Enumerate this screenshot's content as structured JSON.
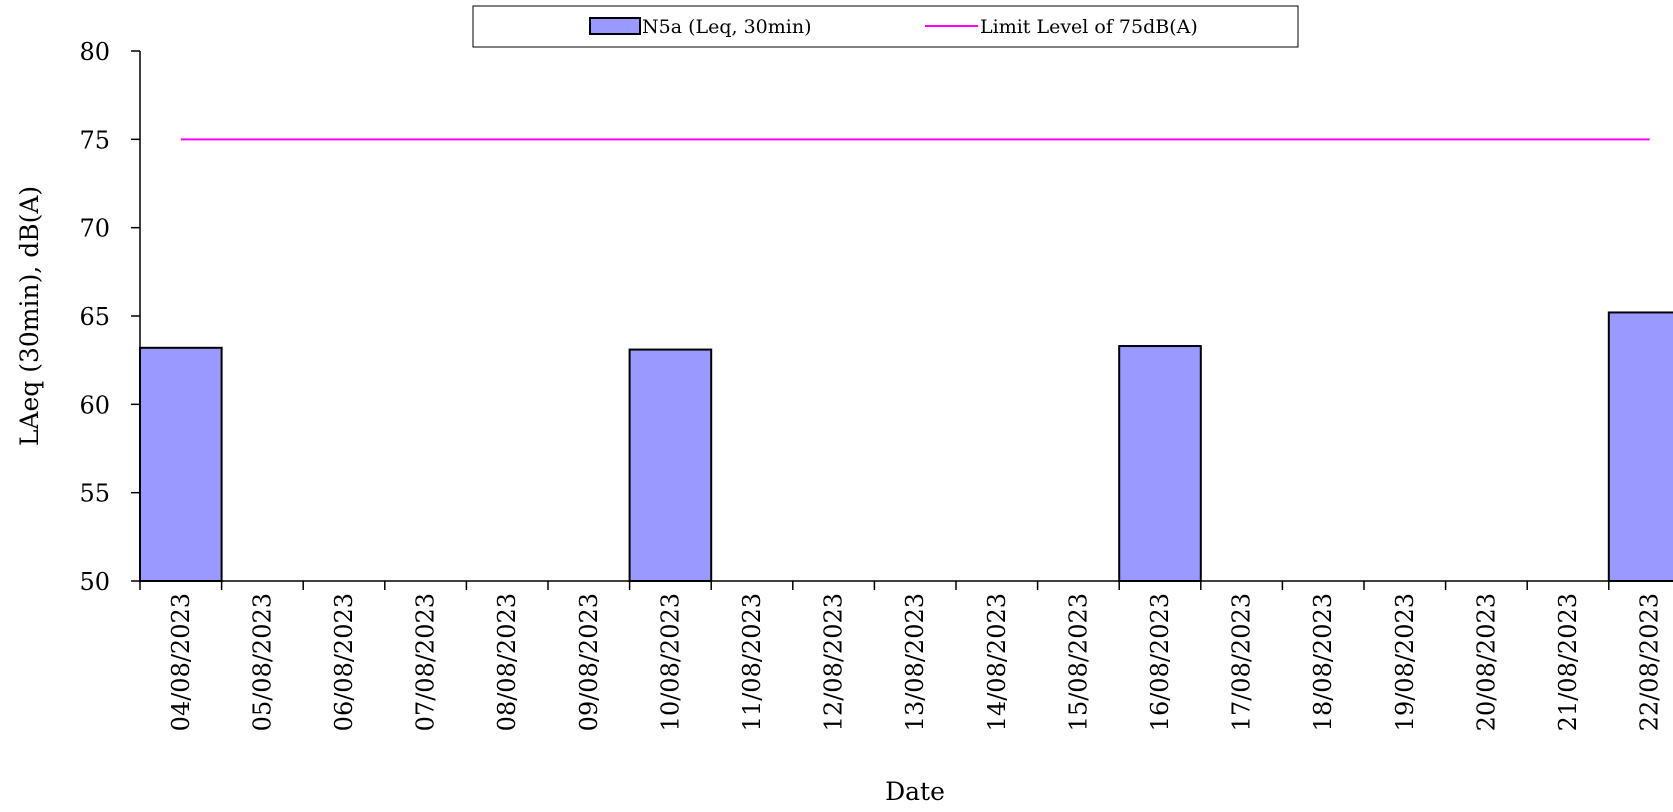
{
  "chart_data": {
    "type": "bar",
    "title": "",
    "xlabel": "Date",
    "ylabel": "LAeq (30min), dB(A)",
    "ylim": [
      50,
      80
    ],
    "yticks": [
      "50",
      "55",
      "60",
      "65",
      "70",
      "75",
      "80"
    ],
    "grid": false,
    "legend_position": "top-center",
    "categories": [
      "04/08/2023",
      "05/08/2023",
      "06/08/2023",
      "07/08/2023",
      "08/08/2023",
      "09/08/2023",
      "10/08/2023",
      "11/08/2023",
      "12/08/2023",
      "13/08/2023",
      "14/08/2023",
      "15/08/2023",
      "16/08/2023",
      "17/08/2023",
      "18/08/2023",
      "19/08/2023",
      "20/08/2023",
      "21/08/2023",
      "22/08/2023"
    ],
    "series": [
      {
        "name": "N5a (Leq, 30min)",
        "type": "bar",
        "color": "#9999ff",
        "values": [
          63.2,
          null,
          null,
          null,
          null,
          null,
          63.1,
          null,
          null,
          null,
          null,
          null,
          63.3,
          null,
          null,
          null,
          null,
          null,
          65.2
        ]
      },
      {
        "name": "Limit Level of 75dB(A)",
        "type": "line",
        "color": "#ff00ff",
        "value": 75
      }
    ]
  }
}
